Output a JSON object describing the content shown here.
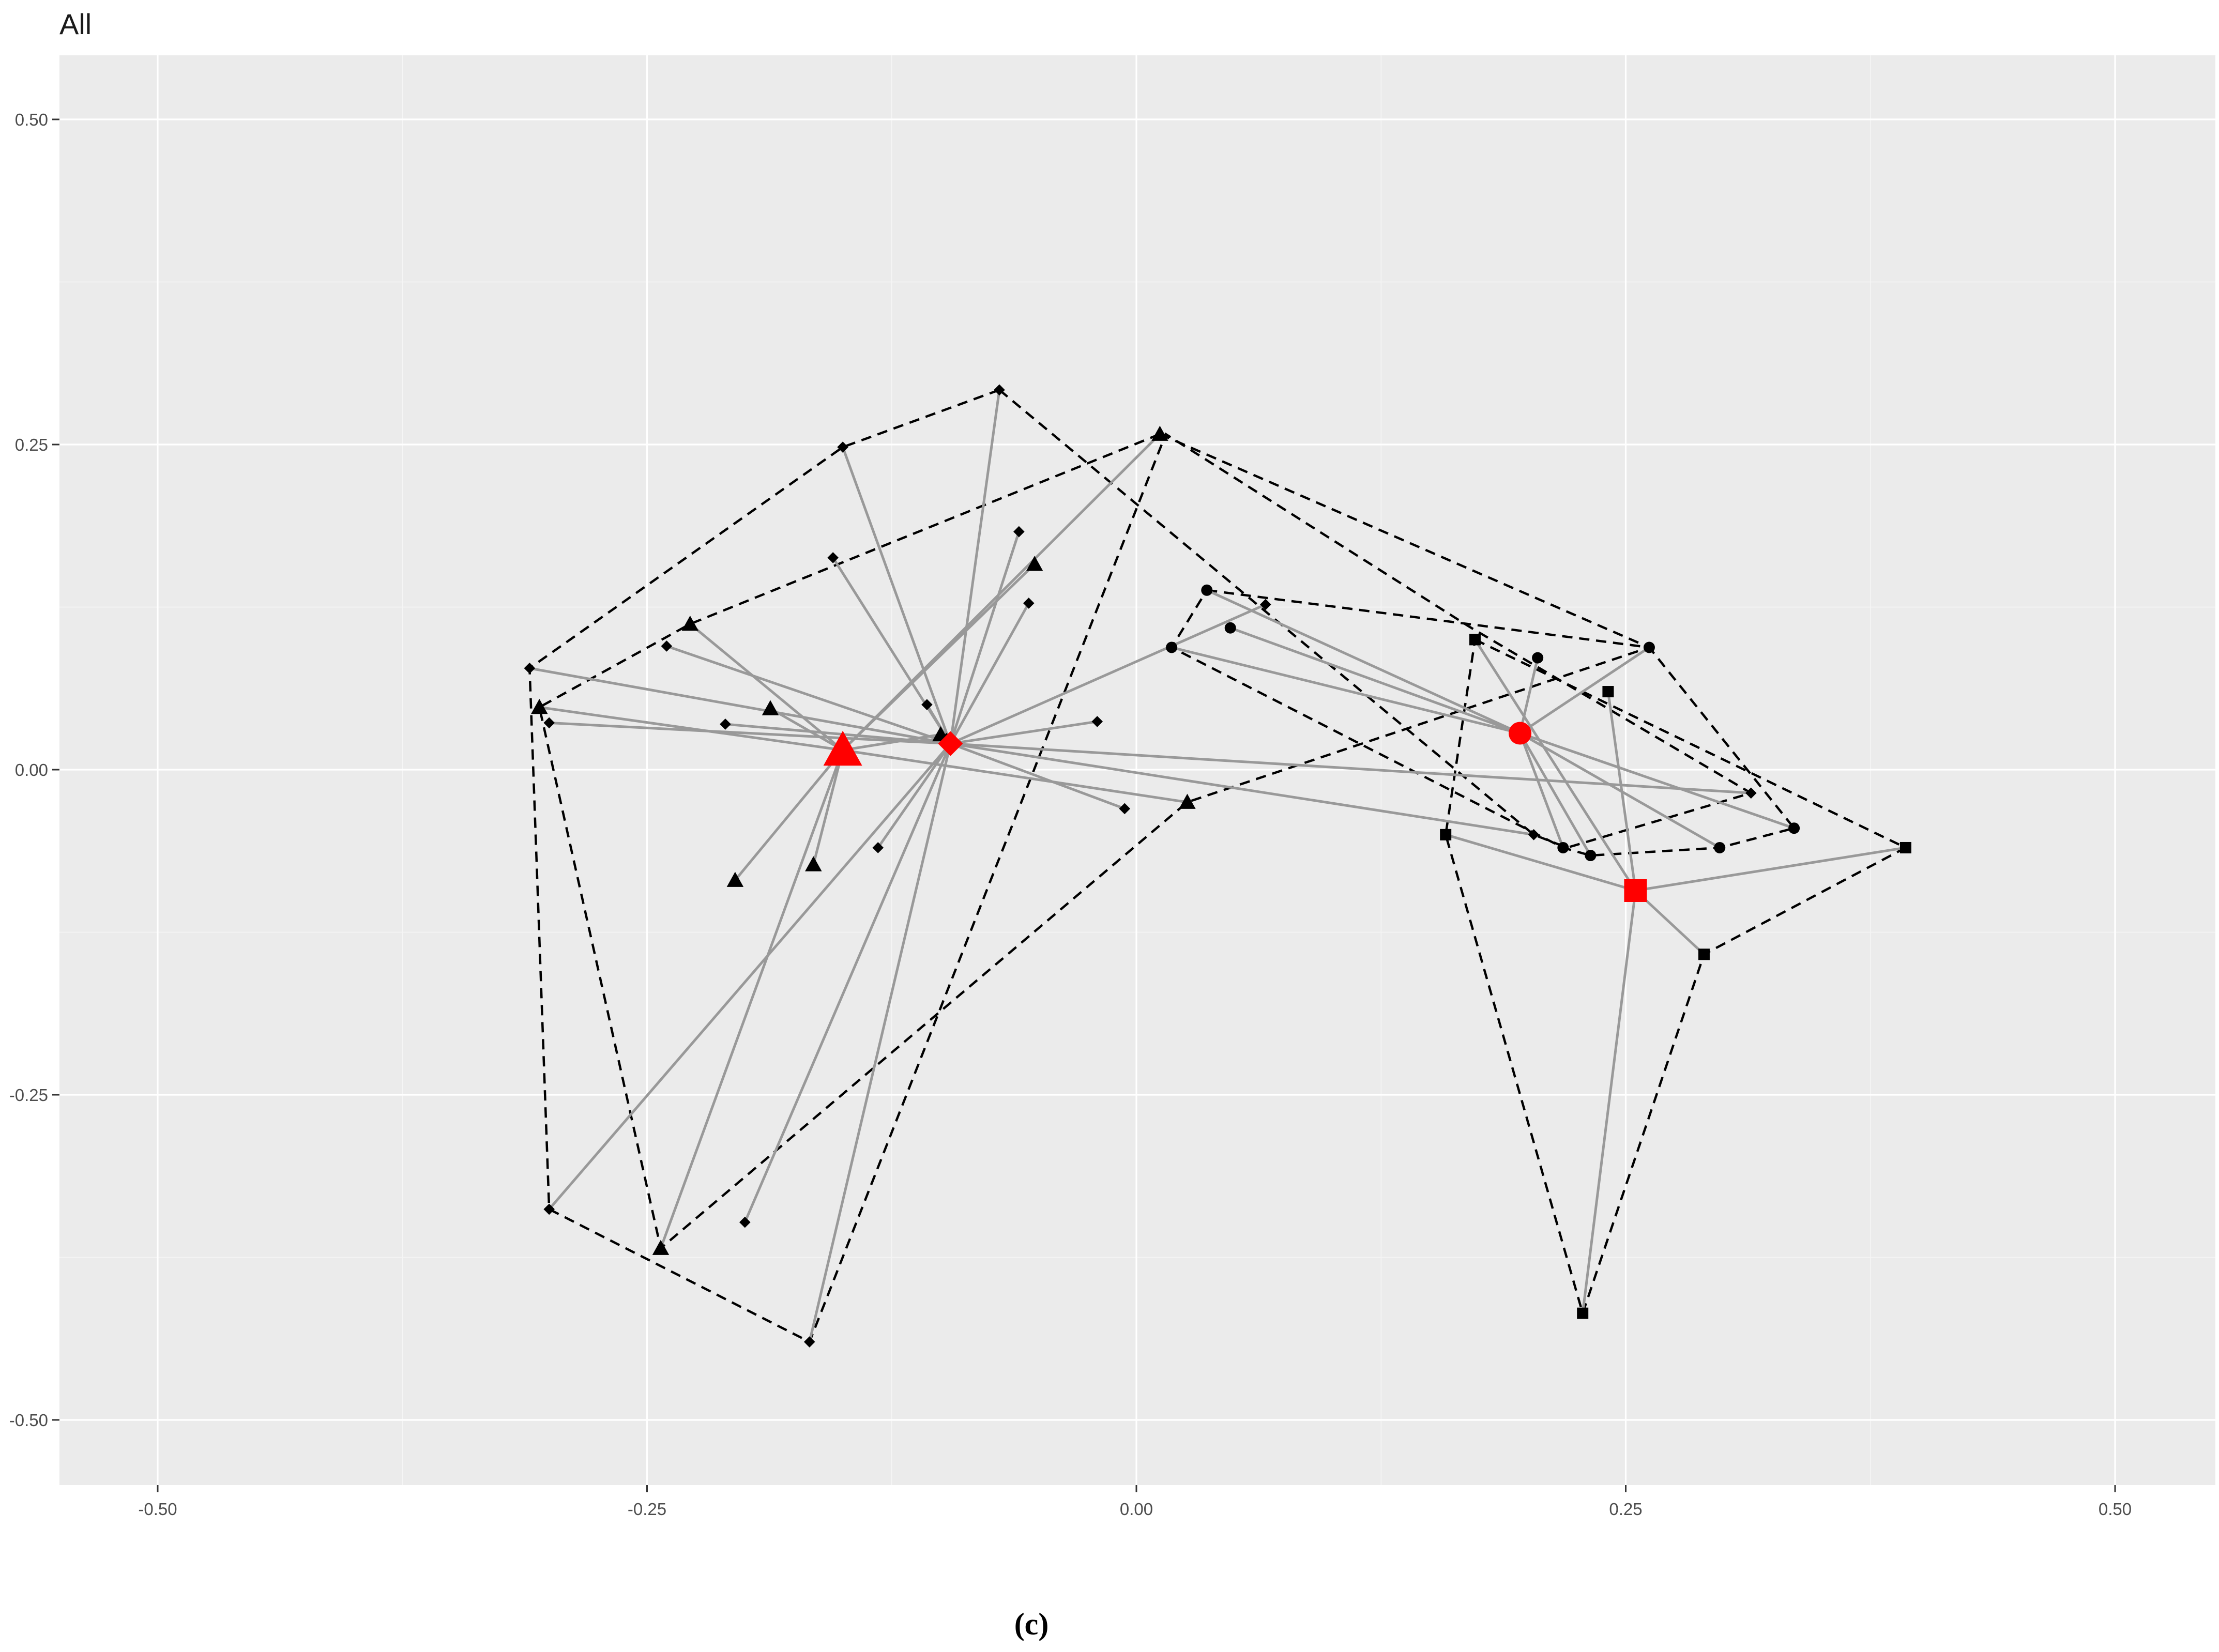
{
  "chart_data": {
    "type": "scatter",
    "title": "All",
    "xlabel": "",
    "ylabel": "",
    "xlim": [
      -0.55,
      0.55
    ],
    "ylim": [
      -0.55,
      0.55
    ],
    "x_ticks": [
      -0.5,
      -0.25,
      0.0,
      0.25,
      0.5
    ],
    "x_tick_labels": [
      "-0.50",
      "-0.25",
      "0.00",
      "0.25",
      "0.50"
    ],
    "y_ticks": [
      0.5,
      0.25,
      0.0,
      -0.25,
      -0.5
    ],
    "y_tick_labels": [
      "0.50",
      "0.25",
      "0.00",
      "-0.25",
      "-0.50"
    ],
    "grid": true,
    "legend": "none",
    "colors": {
      "points": "#000000",
      "centroids": "#ff0000",
      "spokes": "#999999",
      "hulls": "#000000",
      "panel": "#ebebeb"
    },
    "series": [
      {
        "shape": "diamond",
        "centroid": [
          -0.095,
          0.02
        ],
        "points": [
          [
            -0.07,
            0.292
          ],
          [
            -0.15,
            0.248
          ],
          [
            -0.31,
            0.078
          ],
          [
            -0.3,
            -0.338
          ],
          [
            -0.167,
            -0.44
          ],
          [
            -0.2,
            -0.348
          ],
          [
            -0.132,
            -0.06
          ],
          [
            -0.21,
            0.035
          ],
          [
            -0.155,
            0.163
          ],
          [
            -0.24,
            0.095
          ],
          [
            -0.107,
            0.05
          ],
          [
            -0.06,
            0.183
          ],
          [
            -0.055,
            0.128
          ],
          [
            -0.02,
            0.037
          ],
          [
            -0.006,
            -0.03
          ],
          [
            0.066,
            0.127
          ],
          [
            0.203,
            -0.05
          ],
          [
            0.314,
            -0.018
          ],
          [
            -0.097,
            0.024
          ],
          [
            -0.3,
            0.036
          ]
        ],
        "hull": [
          [
            -0.07,
            0.292
          ],
          [
            -0.15,
            0.248
          ],
          [
            -0.31,
            0.078
          ],
          [
            -0.3,
            -0.338
          ],
          [
            -0.167,
            -0.44
          ],
          [
            0.015,
            0.258
          ],
          [
            0.17,
            0.11
          ],
          [
            0.314,
            -0.018
          ],
          [
            0.22,
            -0.06
          ],
          [
            0.203,
            -0.05
          ]
        ]
      },
      {
        "shape": "triangle",
        "centroid": [
          -0.15,
          0.015
        ],
        "points": [
          [
            0.012,
            0.258
          ],
          [
            -0.228,
            0.112
          ],
          [
            -0.305,
            0.048
          ],
          [
            -0.187,
            0.047
          ],
          [
            -0.052,
            0.158
          ],
          [
            -0.1,
            0.027
          ],
          [
            -0.165,
            -0.073
          ],
          [
            -0.205,
            -0.085
          ],
          [
            -0.243,
            -0.368
          ],
          [
            0.026,
            -0.025
          ]
        ],
        "hull": [
          [
            0.012,
            0.258
          ],
          [
            -0.228,
            0.112
          ],
          [
            -0.305,
            0.048
          ],
          [
            -0.243,
            -0.368
          ],
          [
            0.026,
            -0.025
          ],
          [
            0.262,
            0.094
          ]
        ]
      },
      {
        "shape": "circle",
        "centroid": [
          0.196,
          0.028
        ],
        "points": [
          [
            0.036,
            0.138
          ],
          [
            0.048,
            0.109
          ],
          [
            0.018,
            0.094
          ],
          [
            0.205,
            0.086
          ],
          [
            0.262,
            0.094
          ],
          [
            0.218,
            -0.06
          ],
          [
            0.232,
            -0.066
          ],
          [
            0.298,
            -0.06
          ],
          [
            0.336,
            -0.045
          ]
        ],
        "hull": [
          [
            0.036,
            0.138
          ],
          [
            0.262,
            0.094
          ],
          [
            0.336,
            -0.045
          ],
          [
            0.298,
            -0.06
          ],
          [
            0.232,
            -0.066
          ],
          [
            0.218,
            -0.06
          ],
          [
            0.018,
            0.094
          ]
        ]
      },
      {
        "shape": "square",
        "centroid": [
          0.255,
          -0.093
        ],
        "points": [
          [
            0.173,
            0.1
          ],
          [
            0.241,
            0.06
          ],
          [
            0.158,
            -0.05
          ],
          [
            0.393,
            -0.06
          ],
          [
            0.29,
            -0.142
          ],
          [
            0.228,
            -0.418
          ]
        ],
        "hull": [
          [
            0.173,
            0.1
          ],
          [
            0.393,
            -0.06
          ],
          [
            0.29,
            -0.142
          ],
          [
            0.228,
            -0.418
          ],
          [
            0.158,
            -0.05
          ]
        ]
      }
    ]
  },
  "caption": "(c)"
}
